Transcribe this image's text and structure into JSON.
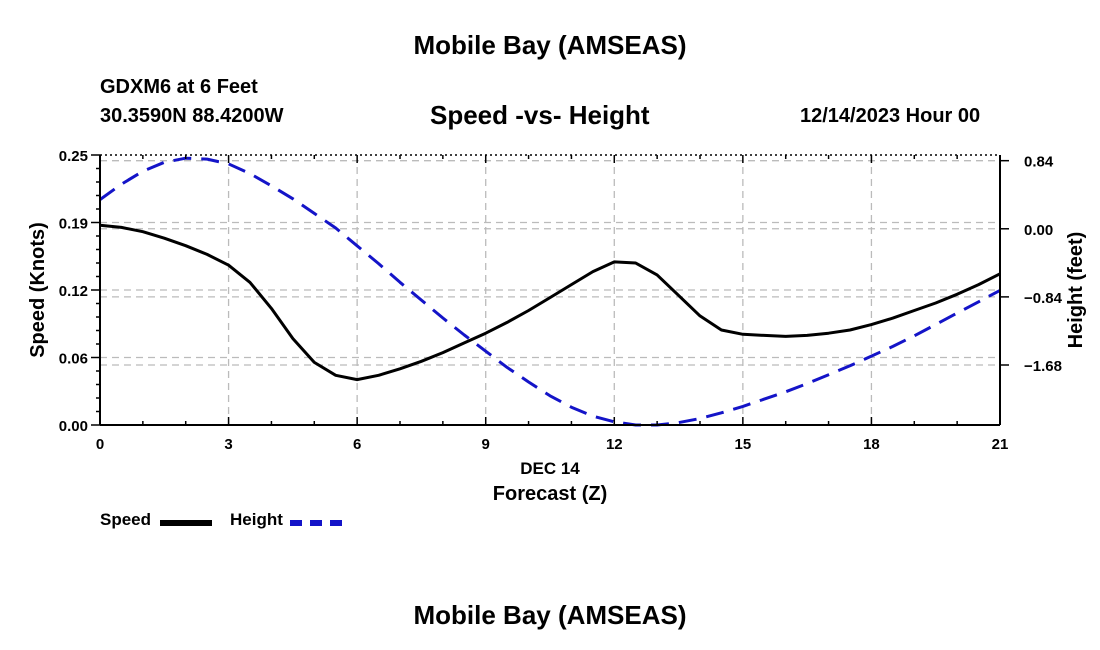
{
  "header": {
    "title": "Mobile Bay (AMSEAS)",
    "station": "GDXM6 at 6 Feet",
    "coords": "30.3590N  88.4200W",
    "subtitle": "Speed -vs- Height",
    "datetime": "12/14/2023 Hour 00"
  },
  "footer": {
    "title": "Mobile Bay (AMSEAS)"
  },
  "legend": {
    "speed_label": "Speed",
    "height_label": "Height"
  },
  "colors": {
    "speed": "#000000",
    "height": "#1414c8",
    "grid": "#bbbbbb"
  },
  "chart_data": {
    "type": "line",
    "title": "Speed -vs- Height",
    "xlabel": "Forecast (Z)",
    "xlabel_date": "DEC 14",
    "ylabel": "Speed (Knots)",
    "y2label": "Height (feet)",
    "xlim": [
      0,
      21
    ],
    "ylim": [
      0,
      0.25
    ],
    "y2lim": [
      -2.42,
      0.91
    ],
    "x_ticks": [
      0,
      3,
      6,
      9,
      12,
      15,
      18,
      21
    ],
    "x_tick_labels": [
      "0",
      "3",
      "6",
      "9",
      "12",
      "15",
      "18",
      "21"
    ],
    "y_ticks": [
      0.0,
      0.0625,
      0.125,
      0.1875,
      0.25
    ],
    "y_tick_labels": [
      "0.00",
      "0.06",
      "0.12",
      "0.19",
      "0.25"
    ],
    "y2_ticks": [
      0.84,
      0.0,
      -0.84,
      -1.68
    ],
    "y2_tick_labels": [
      "0.84",
      "0.00",
      "−0.84",
      "−1.68"
    ],
    "grid": true,
    "legend": "bottom-left",
    "series": [
      {
        "name": "Speed",
        "axis": "left",
        "style": "solid",
        "x": [
          0,
          0.5,
          1,
          1.5,
          2,
          2.5,
          3,
          3.5,
          4,
          4.5,
          5,
          5.5,
          6,
          6.5,
          7,
          7.5,
          8,
          8.5,
          9,
          9.5,
          10,
          10.5,
          11,
          11.5,
          12,
          12.5,
          13,
          13.5,
          14,
          14.5,
          15,
          15.5,
          16,
          16.5,
          17,
          17.5,
          18,
          18.5,
          19,
          19.5,
          20,
          20.5,
          21
        ],
        "values": [
          0.185,
          0.183,
          0.179,
          0.173,
          0.166,
          0.158,
          0.148,
          0.132,
          0.108,
          0.08,
          0.058,
          0.046,
          0.042,
          0.046,
          0.052,
          0.059,
          0.067,
          0.076,
          0.085,
          0.095,
          0.106,
          0.118,
          0.13,
          0.142,
          0.151,
          0.15,
          0.139,
          0.12,
          0.101,
          0.088,
          0.084,
          0.083,
          0.082,
          0.083,
          0.085,
          0.088,
          0.093,
          0.099,
          0.106,
          0.113,
          0.121,
          0.13,
          0.14
        ]
      },
      {
        "name": "Height",
        "axis": "right",
        "style": "dashed",
        "x": [
          0,
          0.5,
          1,
          1.5,
          2,
          2.5,
          3,
          3.5,
          4,
          4.5,
          5,
          5.5,
          6,
          6.5,
          7,
          7.5,
          8,
          8.5,
          9,
          9.5,
          10,
          10.5,
          11,
          11.5,
          12,
          12.5,
          13,
          13.5,
          14,
          14.5,
          15,
          15.5,
          16,
          16.5,
          17,
          17.5,
          18,
          18.5,
          19,
          19.5,
          20,
          20.5,
          21
        ],
        "values": [
          0.36,
          0.55,
          0.71,
          0.82,
          0.87,
          0.86,
          0.8,
          0.68,
          0.53,
          0.37,
          0.19,
          0.01,
          -0.21,
          -0.43,
          -0.66,
          -0.88,
          -1.1,
          -1.31,
          -1.51,
          -1.71,
          -1.89,
          -2.06,
          -2.2,
          -2.31,
          -2.38,
          -2.42,
          -2.42,
          -2.39,
          -2.34,
          -2.27,
          -2.19,
          -2.1,
          -2.01,
          -1.91,
          -1.8,
          -1.69,
          -1.57,
          -1.45,
          -1.32,
          -1.18,
          -1.04,
          -0.9,
          -0.76
        ]
      }
    ]
  }
}
